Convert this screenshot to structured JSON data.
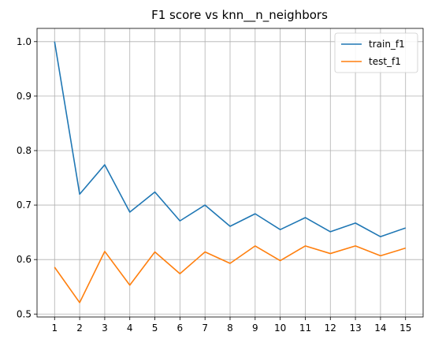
{
  "chart_data": {
    "type": "line",
    "title": "F1 score vs knn__n_neighbors",
    "xlabel": "",
    "ylabel": "",
    "x": [
      1,
      2,
      3,
      4,
      5,
      6,
      7,
      8,
      9,
      10,
      11,
      12,
      13,
      14,
      15
    ],
    "xlim": [
      0.3,
      15.7
    ],
    "ylim": [
      0.4946,
      1.0243
    ],
    "yticks": [
      0.5,
      0.6,
      0.7,
      0.8,
      0.9,
      1.0
    ],
    "ytick_labels": [
      "0.5",
      "0.6",
      "0.7",
      "0.8",
      "0.9",
      "1.0"
    ],
    "grid": true,
    "legend_position": "top-right",
    "series": [
      {
        "name": "train_f1",
        "color": "#1f77b4",
        "values": [
          1.0,
          0.72,
          0.774,
          0.687,
          0.724,
          0.671,
          0.7,
          0.661,
          0.684,
          0.655,
          0.677,
          0.651,
          0.667,
          0.642,
          0.658
        ]
      },
      {
        "name": "test_f1",
        "color": "#ff7f0e",
        "values": [
          0.586,
          0.521,
          0.615,
          0.553,
          0.614,
          0.574,
          0.614,
          0.593,
          0.625,
          0.598,
          0.625,
          0.611,
          0.625,
          0.607,
          0.621
        ]
      }
    ]
  }
}
